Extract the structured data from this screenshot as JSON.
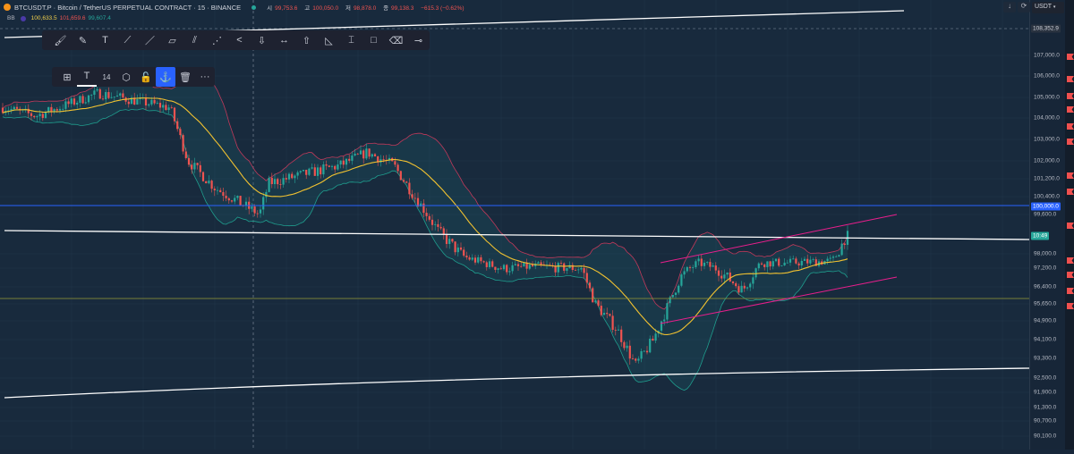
{
  "header": {
    "symbol": "BTCUSDT.P",
    "description": "Bitcoin / TetherUS PERPETUAL CONTRACT",
    "interval": "15",
    "exchange": "BINANCE",
    "title": "BTCUSDT.P · Bitcoin / TetherUS PERPETUAL CONTRACT · 15 · BINANCE",
    "ohlc": [
      {
        "k": "시",
        "v": "99,753.6"
      },
      {
        "k": "고",
        "v": "100,050.0"
      },
      {
        "k": "저",
        "v": "98,878.0"
      },
      {
        "k": "종",
        "v": "99,138.3"
      }
    ],
    "change": "−615.3 (−0.62%)"
  },
  "indicator": {
    "name": "BB",
    "basis": "100,633.5",
    "upper": "101,659.6",
    "lower": "99,607.4"
  },
  "top_right": {
    "currency": "USDT",
    "download_icon": "arrow-down-icon",
    "sync_icon": "refresh-icon"
  },
  "drawing_toolbar": [
    "brush-icon",
    "highlighter-icon",
    "text-icon",
    "trend-line-icon",
    "ray-icon",
    "parallel-channel-icon",
    "disjoint-channel-icon",
    "path-icon",
    "pitchfork-icon",
    "arrow-down-icon",
    "date-range-icon",
    "arrow-up-icon",
    "triangle-icon",
    "price-range-icon",
    "rectangle-icon",
    "eraser-icon",
    "horizontal-ray-icon"
  ],
  "object_toolbar": {
    "font_size": "14",
    "items": [
      "grid-add-icon",
      "text-color-icon",
      "settings-icon",
      "unlock-icon",
      "anchor-icon",
      "trash-icon",
      "more-icon"
    ]
  },
  "price_axis": {
    "ticks": [
      "107,000.0",
      "106,000.0",
      "105,000.0",
      "104,000.0",
      "103,000.0",
      "102,000.0",
      "101,200.0",
      "100,400.0",
      "99,600.0",
      "98,000.0",
      "97,200.0",
      "96,400.0",
      "95,650.0",
      "94,900.0",
      "94,100.0",
      "93,300.0",
      "92,500.0",
      "91,900.0",
      "91,300.0",
      "90,700.0",
      "90,100.0"
    ],
    "labels": {
      "high": "108,352.9",
      "level": "100,000.0",
      "countdown": "10:49"
    }
  },
  "colors": {
    "up": "#26a69a",
    "down": "#ef5350",
    "ma": "#f2c230",
    "bb_upper": "#c2395a",
    "bb_lower": "#1f9e8e",
    "level_blue": "#2962ff",
    "trend": "#ffffff",
    "channel": "#e91e8c",
    "support": "#9a9a35"
  },
  "chart_data": {
    "type": "candlestick",
    "interval": "15",
    "price_path": [
      104500,
      104100,
      105200,
      104500,
      102000,
      100800,
      99600,
      101000,
      101800,
      102400,
      101800,
      100600,
      98900,
      97800,
      97200,
      97300,
      97200,
      95650,
      94500,
      93000,
      94100,
      96800,
      97500,
      97200,
      96250,
      97500,
      97500,
      97600,
      98700
    ],
    "horizontal_levels": [
      100000,
      95800
    ]
  }
}
